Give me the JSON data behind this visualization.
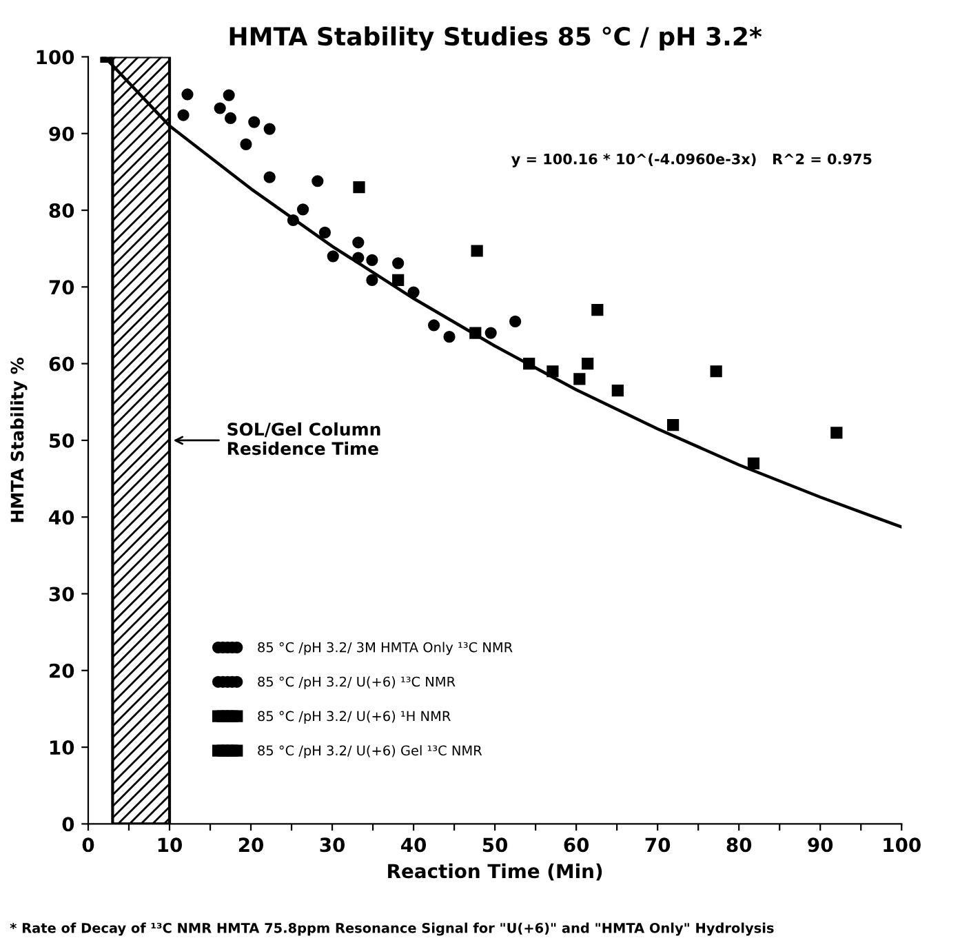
{
  "chart_data": {
    "type": "scatter",
    "title": "HMTA Stability Studies 85 °C / pH 3.2*",
    "xlabel": "Reaction Time (Min)",
    "ylabel": "HMTA Stability %",
    "xlim": [
      0,
      100
    ],
    "ylim": [
      0,
      100
    ],
    "xticks": [
      0,
      {
        "value": 5,
        "label": null
      },
      10,
      {
        "value": 15,
        "label": null
      },
      20,
      {
        "value": 25,
        "label": null
      },
      30,
      {
        "value": 35,
        "label": null
      },
      40,
      {
        "value": 45,
        "label": null
      },
      50,
      {
        "value": 55,
        "label": null
      },
      60,
      {
        "value": 65,
        "label": null
      },
      70,
      {
        "value": 75,
        "label": null
      },
      80,
      {
        "value": 85,
        "label": null
      },
      90,
      {
        "value": 95,
        "label": null
      },
      100
    ],
    "yticks": [
      0,
      10,
      20,
      30,
      40,
      50,
      60,
      70,
      80,
      90,
      100
    ],
    "grid": false,
    "legend": "lower left",
    "series": [
      {
        "name": "85 °C /pH 3.2/ 3M HMTA Only ¹³C NMR",
        "color": "#000000",
        "marker": "circle",
        "x": [
          11.7,
          12.2,
          16.2,
          19.4,
          22.3,
          25.2,
          26.4,
          29.1,
          33.2,
          34.9
        ],
        "values": [
          92.4,
          95.1,
          93.3,
          88.6,
          84.3,
          78.7,
          80.1,
          77.1,
          73.8,
          70.9
        ]
      },
      {
        "name": "85 °C /pH 3.2/ U(+6) ¹³C NMR",
        "color": "#000000",
        "marker": "circle",
        "x": [
          17.3,
          17.5,
          20.4,
          22.3,
          28.2,
          30.1,
          33.2,
          34.9,
          38.1,
          40.0,
          42.5,
          44.4,
          49.5,
          52.5
        ],
        "values": [
          95.0,
          92.0,
          91.5,
          90.6,
          83.8,
          74.0,
          75.8,
          73.5,
          73.1,
          69.3,
          65.0,
          63.5,
          64.0,
          65.5
        ]
      },
      {
        "name": "85 °C /pH 3.2/ U(+6) ¹H NMR",
        "color": "#000000",
        "marker": "square",
        "x": [
          38.1,
          47.6,
          54.2,
          57.1,
          60.4,
          65.1,
          71.9,
          81.8
        ],
        "values": [
          70.9,
          64.0,
          60.0,
          59.0,
          58.0,
          56.5,
          52.0,
          47.0
        ]
      },
      {
        "name": "85 °C /pH 3.2/ U(+6) Gel ¹³C NMR",
        "color": "#000000",
        "marker": "square",
        "x": [
          2.2,
          33.3,
          47.8,
          61.4,
          62.6,
          77.2,
          92.0
        ],
        "values": [
          100.0,
          83.0,
          74.7,
          60.0,
          67.0,
          59.0,
          51.0
        ]
      },
      {
        "type": "line",
        "color": "#000000",
        "marker": "none",
        "line_style": "solid",
        "x": [
          2,
          10,
          20,
          30,
          40,
          50,
          60,
          70,
          80,
          90,
          100
        ],
        "values": [
          100.0,
          91.0,
          82.8,
          75.3,
          68.5,
          62.3,
          56.6,
          51.5,
          46.8,
          42.6,
          38.7
        ]
      }
    ],
    "bands": [
      {
        "axis": "x",
        "from": 3,
        "to": 10,
        "label": "SOL/Gel Column\nResidence Time",
        "color": "#000000"
      }
    ],
    "annotations": [
      "y = 100.16 * 10^(-4.0960e-3x)   R^2 = 0.975",
      "* Rate of Decay of ¹³C NMR HMTA 75.8ppm Resonance Signal for \"U(+6)\" and \"HMTA Only\" Hydrolysis"
    ]
  }
}
